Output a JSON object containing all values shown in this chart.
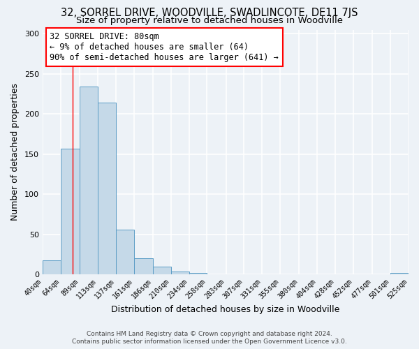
{
  "title": "32, SORREL DRIVE, WOODVILLE, SWADLINCOTE, DE11 7JS",
  "subtitle": "Size of property relative to detached houses in Woodville",
  "xlabel": "Distribution of detached houses by size in Woodville",
  "ylabel": "Number of detached properties",
  "bar_edges": [
    40,
    64,
    89,
    113,
    137,
    161,
    186,
    210,
    234,
    258,
    283,
    307,
    331,
    355,
    380,
    404,
    428,
    452,
    477,
    501,
    525
  ],
  "bar_heights": [
    18,
    157,
    234,
    214,
    56,
    20,
    10,
    4,
    2,
    0,
    0,
    0,
    0,
    0,
    0,
    0,
    0,
    0,
    0,
    2
  ],
  "bar_color": "#c5d9e8",
  "bar_edge_color": "#5a9cc5",
  "vline_x": 80,
  "vline_color": "red",
  "ylim": [
    0,
    305
  ],
  "annotation_line1": "32 SORREL DRIVE: 80sqm",
  "annotation_line2": "← 9% of detached houses are smaller (64)",
  "annotation_line3": "90% of semi-detached houses are larger (641) →",
  "footer_line1": "Contains HM Land Registry data © Crown copyright and database right 2024.",
  "footer_line2": "Contains public sector information licensed under the Open Government Licence v3.0.",
  "tick_labels": [
    "40sqm",
    "64sqm",
    "89sqm",
    "113sqm",
    "137sqm",
    "161sqm",
    "186sqm",
    "210sqm",
    "234sqm",
    "258sqm",
    "283sqm",
    "307sqm",
    "331sqm",
    "355sqm",
    "380sqm",
    "404sqm",
    "428sqm",
    "452sqm",
    "477sqm",
    "501sqm",
    "525sqm"
  ],
  "bg_color": "#edf2f7",
  "grid_color": "#ffffff",
  "title_fontsize": 10.5,
  "subtitle_fontsize": 9.5,
  "label_fontsize": 9,
  "tick_fontsize": 7,
  "annotation_fontsize": 8.5,
  "footer_fontsize": 6.5
}
